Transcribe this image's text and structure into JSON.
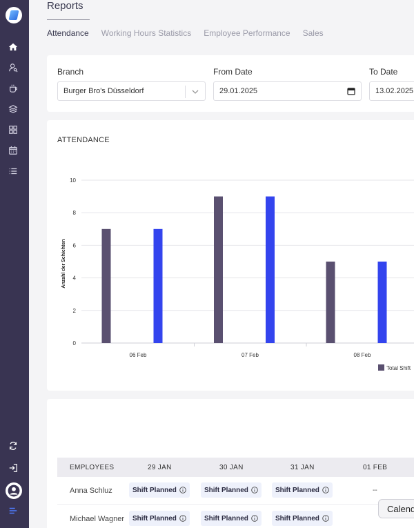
{
  "sidebar": {
    "logo": "app-logo",
    "items": [
      {
        "icon": "home-icon"
      },
      {
        "icon": "user-search-icon"
      },
      {
        "icon": "coffee-cup-icon"
      },
      {
        "icon": "layers-icon"
      },
      {
        "icon": "grid-icon"
      },
      {
        "icon": "calendar-icon"
      },
      {
        "icon": "list-icon"
      }
    ],
    "bottom_items": [
      {
        "icon": "refresh-icon"
      },
      {
        "icon": "logout-icon"
      },
      {
        "icon": "user-avatar-icon"
      },
      {
        "icon": "menu-icon"
      }
    ]
  },
  "page": {
    "title": "Reports",
    "tabs": [
      {
        "label": "Attendance",
        "active": true
      },
      {
        "label": "Working Hours Statistics",
        "active": false
      },
      {
        "label": "Employee Performance",
        "active": false
      },
      {
        "label": "Sales",
        "active": false
      }
    ]
  },
  "filters": {
    "branch_label": "Branch",
    "branch_value": "Burger Bro's Düsseldorf",
    "from_label": "From Date",
    "from_value": "29.01.2025",
    "to_label": "To Date",
    "to_value": "13.02.2025"
  },
  "chart_card": {
    "title": "ATTENDANCE"
  },
  "chart_data": {
    "type": "bar",
    "categories": [
      "06 Feb",
      "07 Feb",
      "08 Feb"
    ],
    "series": [
      {
        "name": "Total Shift",
        "color": "#5a5070",
        "values": [
          7,
          9,
          5
        ]
      },
      {
        "name": "",
        "color": "#3344ee",
        "values": [
          7,
          9,
          5
        ]
      }
    ],
    "ylabel": "Anzahl der Schichten",
    "ylim": [
      0,
      10
    ],
    "yticks": [
      0,
      2,
      4,
      6,
      8,
      10
    ],
    "legend_label": "Total Shift",
    "legend_position": "bottom-right",
    "grid": true
  },
  "table": {
    "headers": [
      "EMPLOYEES",
      "29 JAN",
      "30 JAN",
      "31 JAN",
      "01 FEB"
    ],
    "rows": [
      {
        "name": "Anna Schluz",
        "cells": [
          "Shift Planned",
          "Shift Planned",
          "Shift Planned",
          "--"
        ]
      },
      {
        "name": "Michael Wagner",
        "cells": [
          "Shift Planned",
          "Shift Planned",
          "Shift Planned",
          "--"
        ]
      }
    ]
  },
  "calendar_button": {
    "label": "Calendar"
  }
}
